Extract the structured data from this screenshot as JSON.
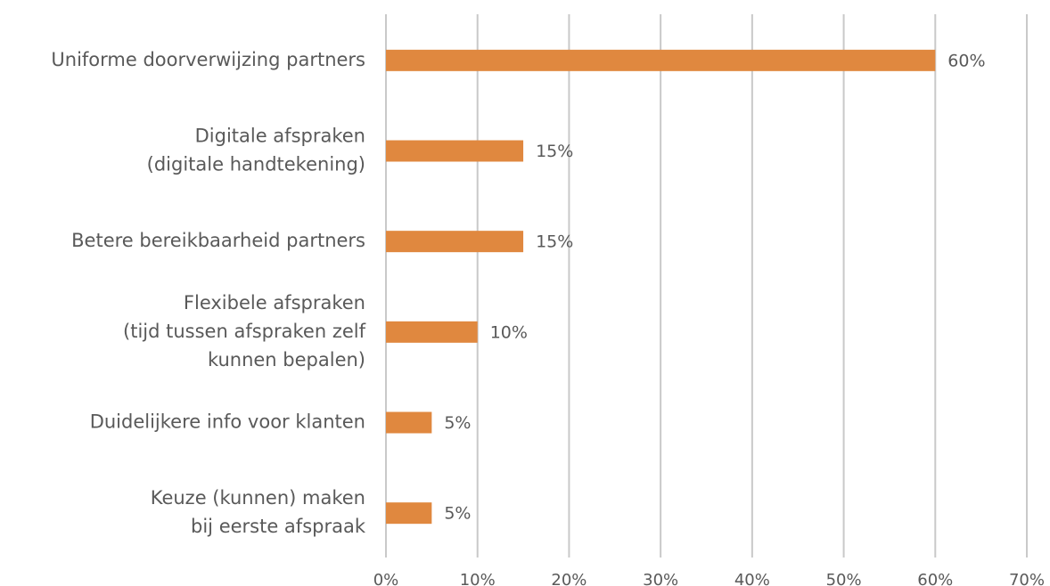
{
  "chart_data": {
    "type": "bar",
    "orientation": "horizontal",
    "categories": [
      "Uniforme doorverwijzing partners",
      "Digitale afspraken\n(digitale handtekening)",
      "Betere bereikbaarheid partners",
      "Flexibele afspraken\n(tijd tussen afspraken zelf\nkunnen bepalen)",
      "Duidelijkere info voor klanten",
      "Keuze (kunnen) maken\nbij eerste afspraak"
    ],
    "values": [
      60,
      15,
      15,
      10,
      5,
      5
    ],
    "value_labels": [
      "60%",
      "15%",
      "15%",
      "10%",
      "5%",
      "5%"
    ],
    "color": "#e0883f",
    "xlim": [
      0,
      70
    ],
    "xticks": [
      {
        "value": 0,
        "label": "0%"
      },
      {
        "value": 10,
        "label": "10%"
      },
      {
        "value": 20,
        "label": "20%"
      },
      {
        "value": 30,
        "label": "30%"
      },
      {
        "value": 40,
        "label": "40%"
      },
      {
        "value": 50,
        "label": "50%"
      },
      {
        "value": 60,
        "label": "60%"
      },
      {
        "value": 70,
        "label": "70%"
      }
    ],
    "grid": true
  }
}
